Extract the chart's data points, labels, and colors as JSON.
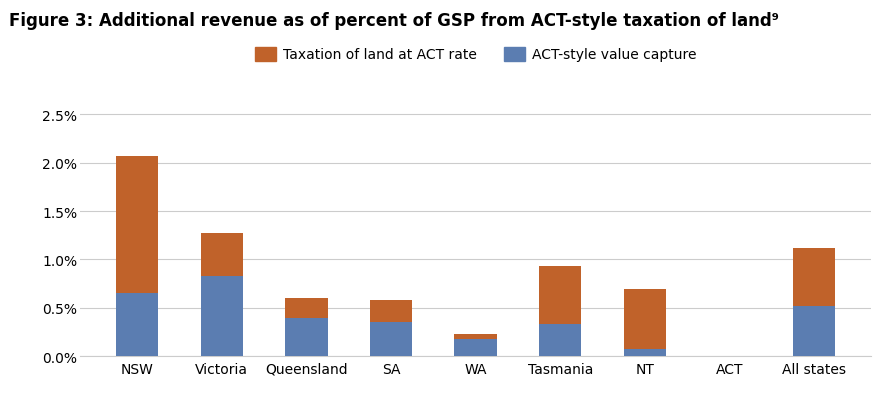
{
  "title": "Figure 3: Additional revenue as of percent of GSP from ACT-style taxation of land⁹",
  "categories": [
    "NSW",
    "Victoria",
    "Queensland",
    "SA",
    "WA",
    "Tasmania",
    "NT",
    "ACT",
    "All states"
  ],
  "blue_values": [
    0.0065,
    0.0083,
    0.004,
    0.0035,
    0.0018,
    0.0033,
    0.0008,
    0.0,
    0.0052
  ],
  "orange_values": [
    0.0142,
    0.0044,
    0.002,
    0.0023,
    0.0005,
    0.006,
    0.0062,
    0.0,
    0.006
  ],
  "blue_color": "#5b7db1",
  "orange_color": "#c0622a",
  "legend_label_orange": "Taxation of land at ACT rate",
  "legend_label_blue": "ACT-style value capture",
  "ylim": [
    0,
    0.026
  ],
  "yticks": [
    0.0,
    0.005,
    0.01,
    0.015,
    0.02,
    0.025
  ],
  "ytick_labels": [
    "0.0%",
    "0.5%",
    "1.0%",
    "1.5%",
    "2.0%",
    "2.5%"
  ],
  "background_color": "#ffffff",
  "grid_color": "#cccccc",
  "title_fontsize": 12,
  "tick_fontsize": 10,
  "legend_fontsize": 10,
  "bar_width": 0.5
}
